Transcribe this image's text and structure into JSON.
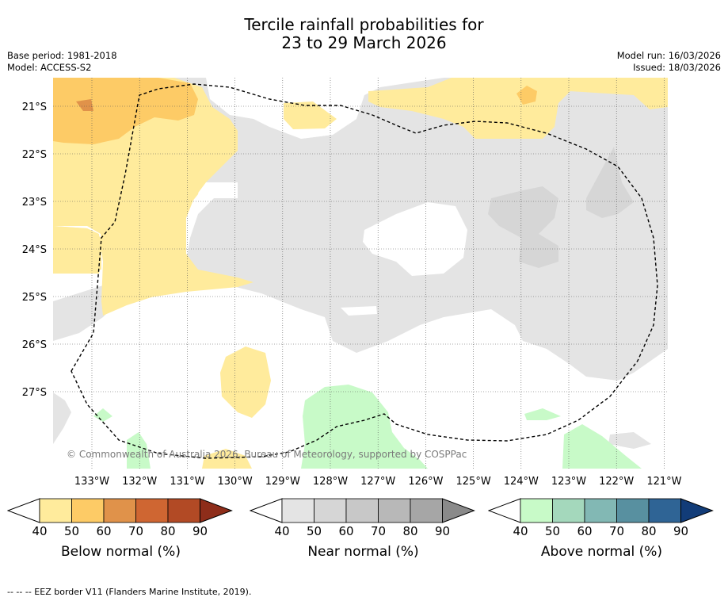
{
  "title": {
    "line1": "Tercile rainfall probabilities for",
    "line2": "23 to 29 March 2026"
  },
  "meta": {
    "base_period": "Base period: 1981-2018",
    "model": "Model: ACCESS-S2",
    "model_run": "Model run: 16/03/2026",
    "issued": "Issued: 18/03/2026"
  },
  "map": {
    "lon_labels": [
      "133°W",
      "132°W",
      "131°W",
      "130°W",
      "129°W",
      "128°W",
      "127°W",
      "126°W",
      "125°W",
      "124°W",
      "123°W",
      "122°W",
      "121°W"
    ],
    "lat_labels": [
      "21°S",
      "22°S",
      "23°S",
      "24°S",
      "25°S",
      "26°S",
      "27°S"
    ],
    "copyright": "© Commonwealth of Australia 2026, Bureau of Meteorology, supported by COSPPac"
  },
  "colorbars": [
    {
      "label": "Below normal (%)",
      "ticks": [
        "40",
        "50",
        "60",
        "70",
        "80",
        "90"
      ],
      "colors": [
        "#ffeb9c",
        "#fdcb66",
        "#e0924a",
        "#cf6632",
        "#b24a25",
        "#8e2d1a"
      ]
    },
    {
      "label": "Near normal (%)",
      "ticks": [
        "40",
        "50",
        "60",
        "70",
        "80",
        "90"
      ],
      "colors": [
        "#e4e4e4",
        "#d6d6d6",
        "#c8c8c8",
        "#b8b8b8",
        "#a6a6a6",
        "#8a8a8a"
      ]
    },
    {
      "label": "Above normal (%)",
      "ticks": [
        "40",
        "50",
        "60",
        "70",
        "80",
        "90"
      ],
      "colors": [
        "#c8fac8",
        "#a4d8bc",
        "#82b8b4",
        "#5890a0",
        "#2f6495",
        "#123c78"
      ]
    }
  ],
  "footer": "-- -- -- EEZ border V11 (Flanders Marine Institute, 2019)."
}
